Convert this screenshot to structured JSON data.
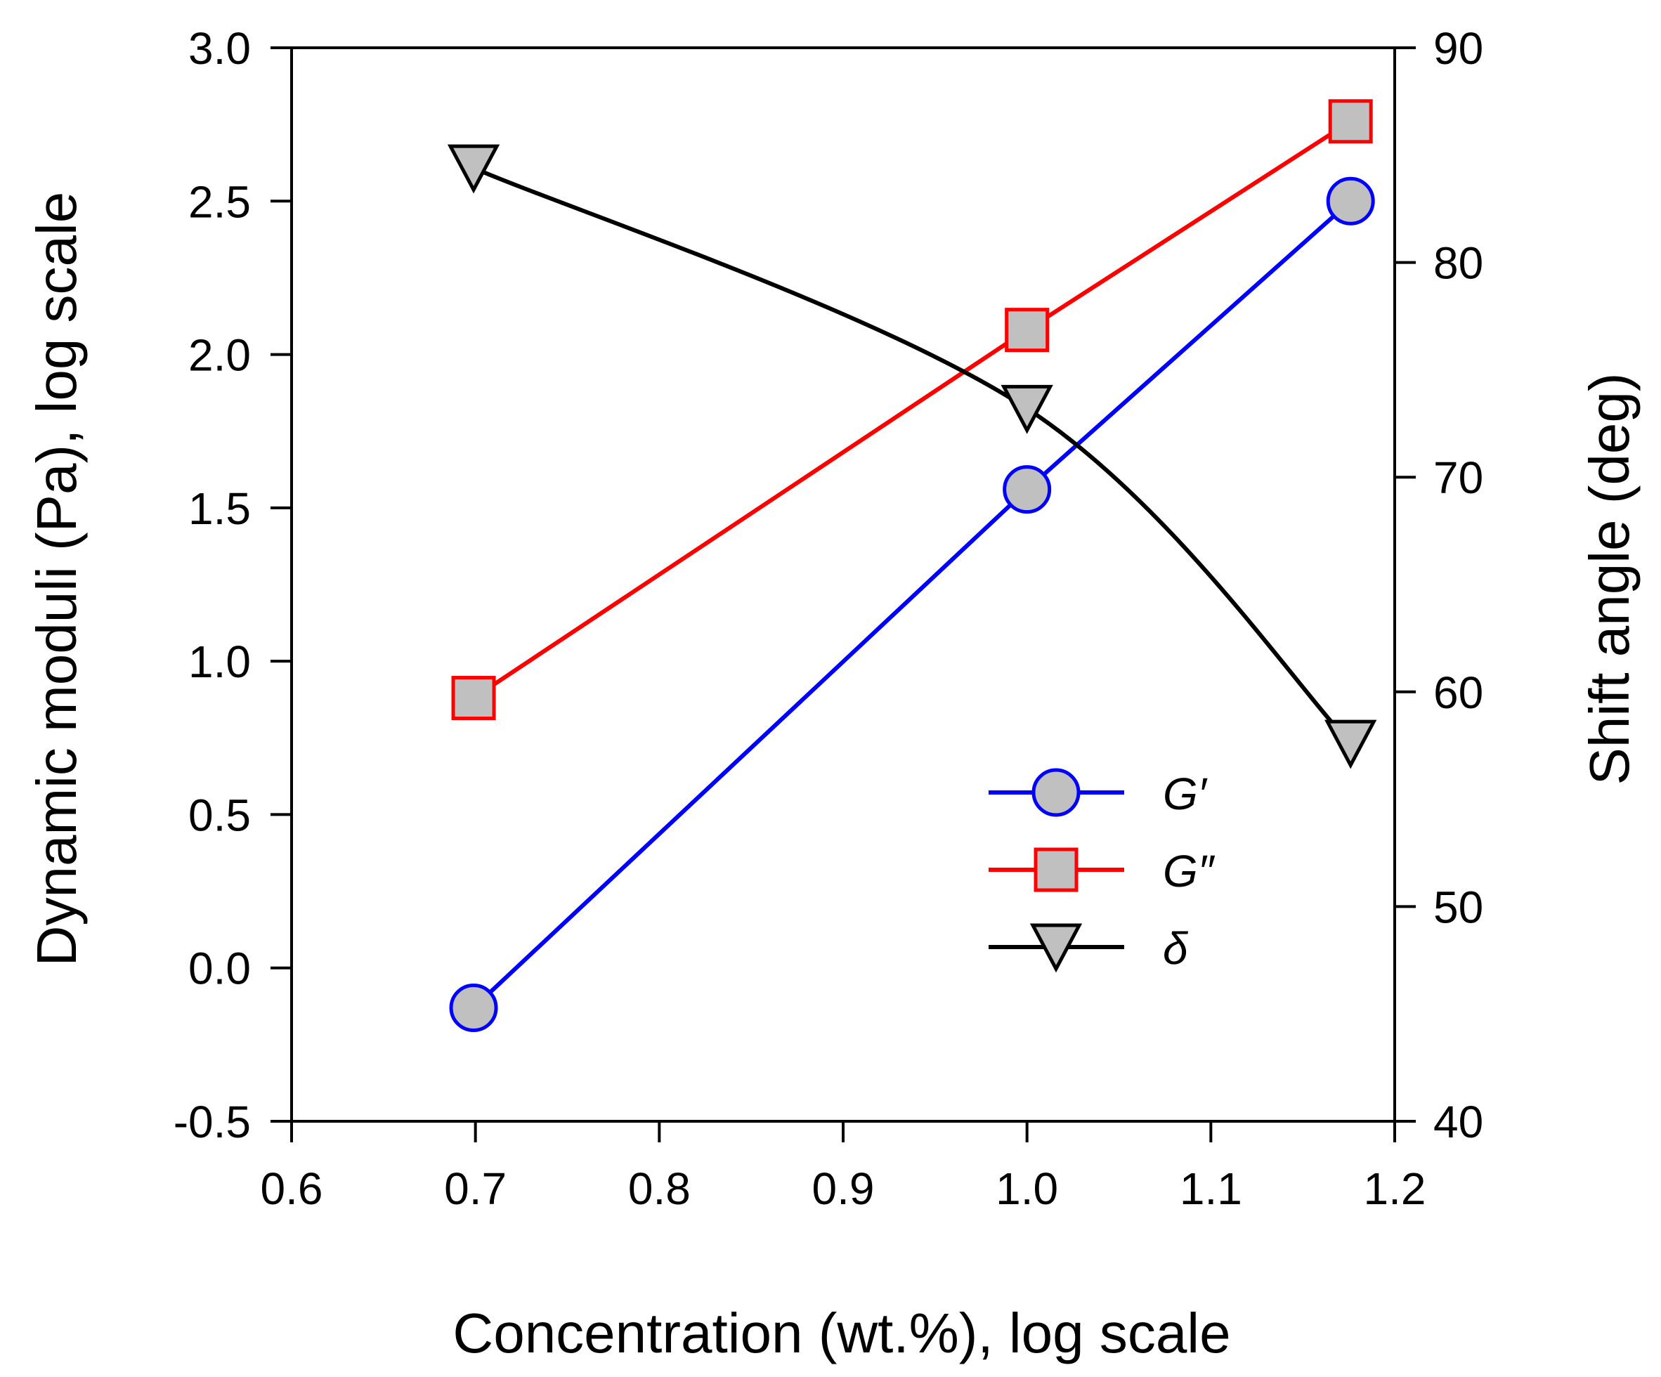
{
  "chart_data": {
    "type": "line",
    "xlabel": "Concentration (wt.%), log scale",
    "ylabel": "Dynamic moduli (Pa), log scale",
    "y2label": "Shift angle (deg)",
    "xlim": [
      0.6,
      1.2
    ],
    "ylim": [
      -0.5,
      3.0
    ],
    "y2lim": [
      40,
      90
    ],
    "x_ticks": [
      "0.6",
      "0.7",
      "0.8",
      "0.9",
      "1.0",
      "1.1",
      "1.2"
    ],
    "y_ticks": [
      "-0.5",
      "0.0",
      "0.5",
      "1.0",
      "1.5",
      "2.0",
      "2.5",
      "3.0"
    ],
    "y2_ticks": [
      "40",
      "50",
      "60",
      "70",
      "80",
      "90"
    ],
    "grid": false,
    "legend_position": "lower-right",
    "series": [
      {
        "name": "G′",
        "axis": "left",
        "marker": "circle",
        "line_color": "#0000ff",
        "marker_fill": "#c0c0c0",
        "marker_edge": "#0000ff",
        "smooth": false,
        "x": [
          0.699,
          1.0,
          1.176
        ],
        "y": [
          -0.13,
          1.56,
          2.5
        ]
      },
      {
        "name": "G″",
        "axis": "left",
        "marker": "square",
        "line_color": "#ff0000",
        "marker_fill": "#c0c0c0",
        "marker_edge": "#ff0000",
        "smooth": false,
        "x": [
          0.699,
          1.0,
          1.176
        ],
        "y": [
          0.88,
          2.08,
          2.76
        ]
      },
      {
        "name": "δ",
        "axis": "right",
        "marker": "triangle-down",
        "line_color": "#000000",
        "marker_fill": "#c0c0c0",
        "marker_edge": "#000000",
        "smooth": true,
        "x": [
          0.699,
          1.0,
          1.176
        ],
        "y": [
          84.4,
          73.2,
          57.6
        ]
      }
    ]
  }
}
